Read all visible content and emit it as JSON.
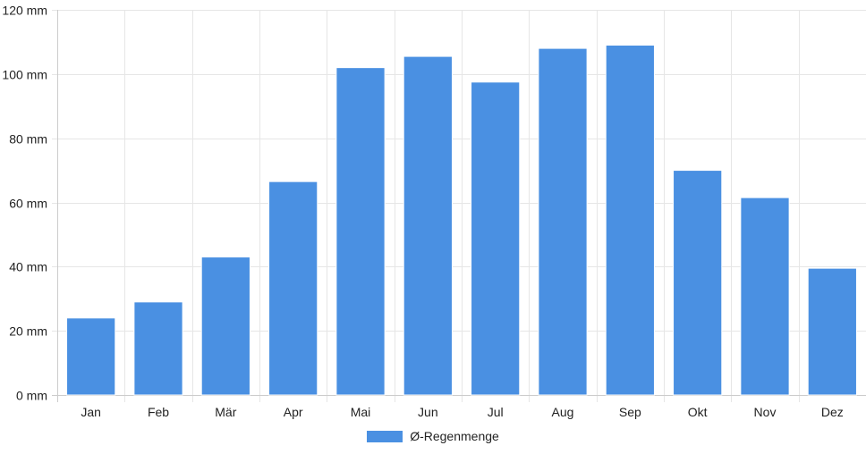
{
  "chart_data": {
    "type": "bar",
    "categories": [
      "Jan",
      "Feb",
      "Mär",
      "Apr",
      "Mai",
      "Jun",
      "Jul",
      "Aug",
      "Sep",
      "Okt",
      "Nov",
      "Dez"
    ],
    "series": [
      {
        "name": "Ø-Regenmenge",
        "values": [
          24,
          29,
          43,
          66.5,
          102,
          105.5,
          97.5,
          108,
          109,
          70,
          61.5,
          39.5
        ]
      }
    ],
    "ylim": [
      0,
      120
    ],
    "y_ticks": [
      0,
      20,
      40,
      60,
      80,
      100,
      120
    ],
    "y_tick_suffix": " mm",
    "grid": true,
    "legend_position": "bottom"
  },
  "colors": {
    "bar": "#4a90e2",
    "grid": "#e6e6e6",
    "axis": "#cccccc"
  }
}
